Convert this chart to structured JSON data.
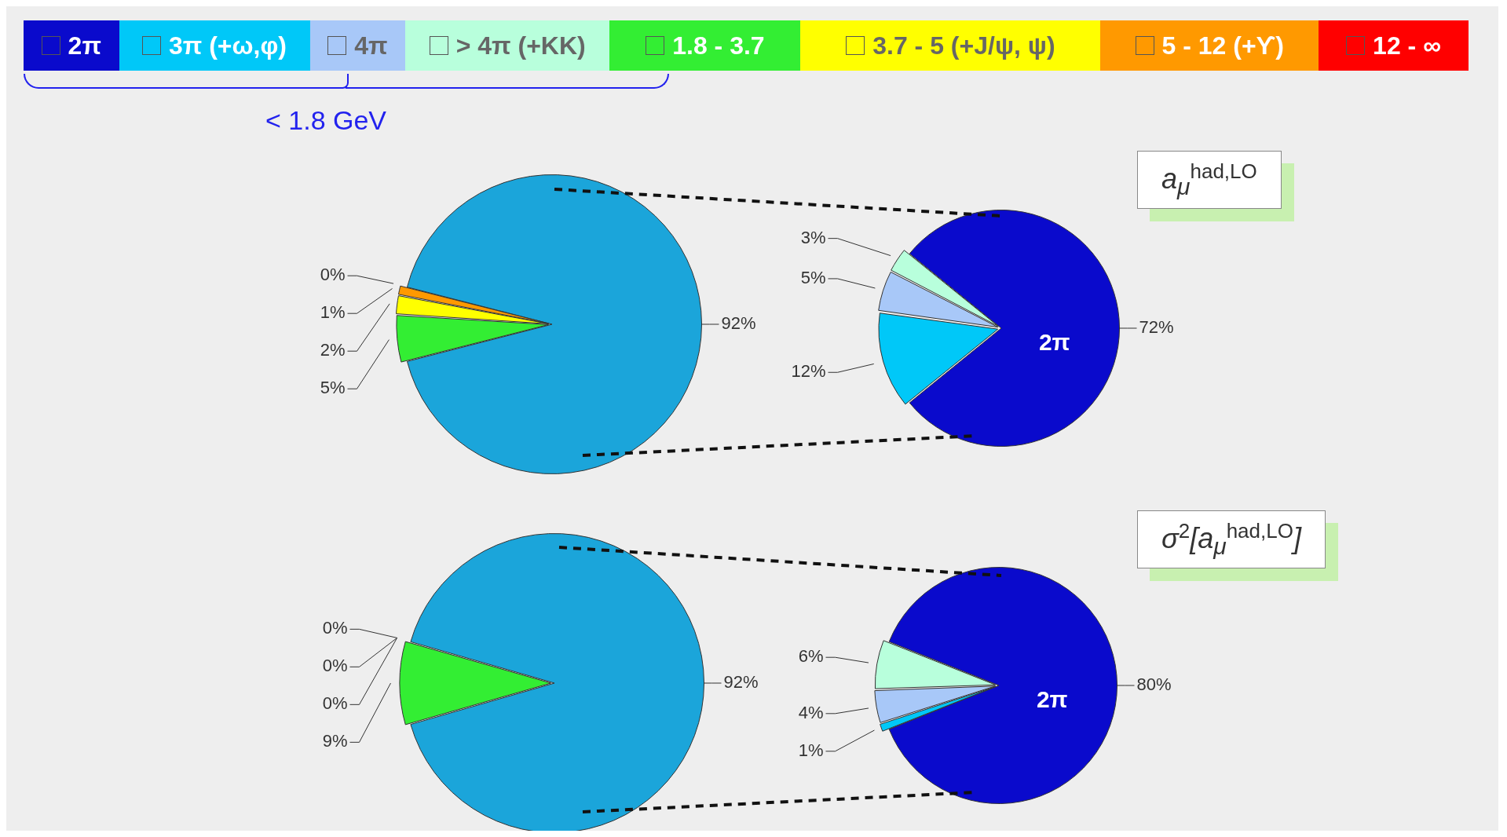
{
  "chart_data": [
    {
      "type": "pie",
      "categories": [
        "< 1.8 GeV",
        "1.8 - 3.7",
        "3.7 - 5 (+J/ψ, ψ)",
        "5 - 12 (+ϒ)",
        "12 - ∞"
      ],
      "values": [
        92,
        5,
        2,
        1,
        0
      ],
      "colors": [
        "#1ba5da",
        "#33ee33",
        "#ffff00",
        "#ff9900",
        "#ff0000"
      ],
      "value_labels": [
        "92%",
        "5%",
        "2%",
        "1%",
        "0%"
      ],
      "legend": "top"
    },
    {
      "type": "pie",
      "title": "a$_{μ}$$^{had,LO}$",
      "categories": [
        "2π",
        "3π (+ω,φ)",
        "4π",
        "> 4π (+KK)"
      ],
      "values": [
        72,
        12,
        5,
        3
      ],
      "colors": [
        "#0a0acc",
        "#00c8f8",
        "#a8c8f8",
        "#b8ffdc"
      ],
      "value_labels": [
        "72%",
        "12%",
        "5%",
        "3%"
      ],
      "annotations": [
        "2π"
      ],
      "legend": "top"
    },
    {
      "type": "pie",
      "categories": [
        null,
        null,
        null,
        null,
        null
      ],
      "values": [
        92,
        9,
        0,
        0,
        0
      ],
      "colors": [
        "#1ba5da",
        "#33ee33",
        "#ffff00",
        "#ff9900",
        "#ff0000"
      ],
      "value_labels": [
        "92%",
        "9%",
        "0%",
        "0%",
        "0%"
      ]
    },
    {
      "type": "pie",
      "title": "σ$^{2}$[a$_{μ}$$^{had,LO}$]",
      "categories": [
        null,
        null,
        null,
        null
      ],
      "values": [
        80,
        1,
        4,
        6
      ],
      "colors": [
        "#0a0acc",
        "#00c8f8",
        "#a8c8f8",
        "#b8ffdc"
      ],
      "value_labels": [
        "80%",
        "1%",
        "4%",
        "6%"
      ],
      "annotations": [
        "2π"
      ]
    }
  ]
}
